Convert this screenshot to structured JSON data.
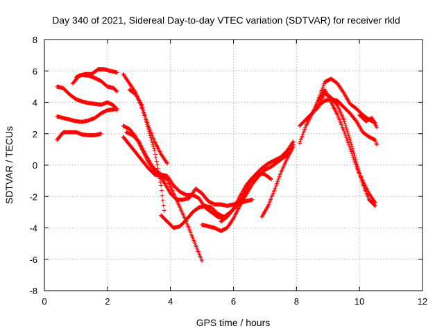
{
  "chart_data": {
    "type": "scatter",
    "title": "Day 340 of 2021, Sidereal Day-to-day VTEC variation (SDTVAR) for receiver rkld",
    "xlabel": "GPS time / hours",
    "ylabel": "SDTVAR / TECUs",
    "xlim": [
      0,
      12
    ],
    "ylim": [
      -8,
      8
    ],
    "xticks": [
      0,
      2,
      4,
      6,
      8,
      10,
      12
    ],
    "yticks": [
      -8,
      -6,
      -4,
      -2,
      0,
      2,
      4,
      6,
      8
    ],
    "grid": true,
    "marker": "plus",
    "color": "#ff0000",
    "series": [
      {
        "x": [
          0.4,
          0.6,
          0.8,
          1.0,
          1.2,
          1.4,
          1.6,
          1.8,
          2.0,
          2.2,
          2.3
        ],
        "y": [
          5.0,
          4.9,
          4.5,
          4.2,
          4.05,
          3.95,
          3.9,
          3.85,
          4.0,
          3.8,
          3.5
        ]
      },
      {
        "x": [
          0.4,
          0.6,
          0.8,
          1.0,
          1.2,
          1.4,
          1.6,
          1.8,
          2.0,
          2.2,
          2.3
        ],
        "y": [
          3.1,
          3.0,
          2.9,
          2.8,
          2.75,
          2.85,
          3.0,
          3.3,
          3.5,
          3.55,
          3.6
        ]
      },
      {
        "x": [
          0.4,
          0.6,
          0.8,
          1.0,
          1.2,
          1.4,
          1.6,
          1.8
        ],
        "y": [
          1.6,
          2.1,
          2.1,
          2.1,
          1.95,
          1.9,
          1.9,
          2.0
        ]
      },
      {
        "x": [
          0.9,
          1.1,
          1.3,
          1.5,
          1.7,
          1.9,
          2.1,
          2.3
        ],
        "y": [
          5.2,
          5.7,
          5.8,
          5.8,
          6.1,
          6.1,
          6.0,
          5.9
        ]
      },
      {
        "x": [
          1.0,
          1.2,
          1.4,
          1.6,
          1.8,
          2.0,
          2.2,
          2.3
        ],
        "y": [
          5.6,
          5.75,
          5.7,
          5.55,
          5.35,
          5.0,
          4.9,
          4.7
        ]
      },
      {
        "x": [
          2.5,
          2.7,
          2.9,
          3.1,
          3.3,
          3.5,
          3.7,
          3.9
        ],
        "y": [
          5.8,
          5.2,
          4.6,
          3.6,
          2.5,
          1.5,
          0.7,
          0.1
        ]
      },
      {
        "x": [
          2.7,
          2.9,
          3.1,
          3.3,
          3.5,
          3.7,
          3.8
        ],
        "y": [
          4.8,
          4.5,
          3.8,
          2.3,
          0.9,
          -1.3,
          -2.9
        ]
      },
      {
        "x": [
          2.5,
          2.7,
          2.9,
          3.1,
          3.3,
          3.5,
          3.7,
          3.9,
          4.1,
          4.3,
          4.5,
          4.7,
          4.9,
          5.0
        ],
        "y": [
          1.8,
          1.3,
          0.8,
          0.3,
          -0.2,
          -0.6,
          -0.7,
          -0.9,
          -1.8,
          -2.7,
          -3.6,
          -4.6,
          -5.6,
          -6.1
        ]
      },
      {
        "x": [
          2.5,
          2.7,
          2.9,
          3.1,
          3.3,
          3.5,
          3.7,
          3.9,
          4.1,
          4.3,
          4.5,
          4.7,
          4.9,
          5.1,
          5.3,
          5.5,
          5.7,
          5.9,
          6.0
        ],
        "y": [
          2.5,
          2.3,
          1.8,
          1.0,
          0.2,
          -0.4,
          -0.6,
          -0.7,
          -1.3,
          -1.7,
          -1.9,
          -1.9,
          -2.1,
          -2.7,
          -3.0,
          -3.3,
          -3.4,
          -3.0,
          -2.8
        ]
      },
      {
        "x": [
          2.6,
          2.8,
          3.0,
          3.2,
          3.4,
          3.6,
          3.8,
          4.0,
          4.2,
          4.4,
          4.6,
          4.8,
          5.0,
          5.2,
          5.4,
          5.6,
          5.8,
          6.0,
          6.2,
          6.4,
          6.6
        ],
        "y": [
          2.1,
          1.9,
          1.5,
          0.7,
          0.0,
          -0.5,
          -1.1,
          -1.8,
          -2.2,
          -2.2,
          -2.1,
          -1.5,
          -1.8,
          -2.3,
          -2.5,
          -2.5,
          -2.6,
          -2.5,
          -2.4,
          -2.3,
          -2.2
        ]
      },
      {
        "x": [
          3.7,
          3.9,
          4.1,
          4.3,
          4.5,
          4.7,
          4.9,
          5.1,
          5.3,
          5.5,
          5.7,
          5.9,
          6.1,
          6.3,
          6.5,
          6.7,
          6.9,
          7.1,
          7.3,
          7.5,
          7.7,
          7.9
        ],
        "y": [
          -3.2,
          -3.6,
          -4.0,
          -3.9,
          -3.5,
          -3.0,
          -2.7,
          -2.6,
          -2.7,
          -3.1,
          -3.3,
          -3.0,
          -2.6,
          -2.0,
          -1.2,
          -0.6,
          -0.2,
          0.1,
          0.3,
          0.5,
          0.9,
          1.5
        ]
      },
      {
        "x": [
          5.0,
          5.2,
          5.4,
          5.6,
          5.8,
          6.0,
          6.2,
          6.4,
          6.6,
          6.8,
          7.0,
          7.2,
          7.4,
          7.6,
          7.8,
          7.9
        ],
        "y": [
          -3.8,
          -3.9,
          -4.0,
          -4.2,
          -4.0,
          -3.4,
          -2.6,
          -1.9,
          -1.2,
          -0.7,
          -0.3,
          -0.1,
          0.2,
          0.5,
          0.8,
          1.3
        ]
      },
      {
        "x": [
          5.6,
          5.8,
          6.0,
          6.2,
          6.4,
          6.6,
          6.8,
          7.0,
          7.2
        ],
        "y": [
          -3.6,
          -3.3,
          -2.8,
          -2.0,
          -1.3,
          -0.8,
          -0.5,
          -0.6,
          -0.9
        ]
      },
      {
        "x": [
          6.9,
          7.1,
          7.3,
          7.5,
          7.7,
          7.9
        ],
        "y": [
          -3.3,
          -2.6,
          -1.6,
          -0.5,
          0.4,
          1.2
        ]
      },
      {
        "x": [
          8.1,
          8.3,
          8.5,
          8.7,
          8.9,
          9.1,
          9.3,
          9.5,
          9.7,
          9.9,
          10.1,
          10.3,
          10.5
        ],
        "y": [
          1.4,
          2.5,
          3.3,
          4.2,
          5.3,
          5.5,
          5.2,
          4.6,
          3.9,
          3.6,
          3.2,
          2.9,
          2.7
        ]
      },
      {
        "x": [
          8.1,
          8.3,
          8.5,
          8.7,
          8.9,
          9.1,
          9.3,
          9.5,
          9.7,
          9.9,
          10.1,
          10.3,
          10.5,
          10.55
        ],
        "y": [
          2.5,
          2.9,
          3.3,
          3.8,
          4.1,
          4.2,
          4.1,
          3.7,
          3.3,
          2.8,
          2.1,
          1.8,
          1.6,
          1.3
        ]
      },
      {
        "x": [
          8.3,
          8.5,
          8.7,
          8.9,
          9.1,
          9.3,
          9.5,
          9.7,
          9.9,
          10.1,
          10.3,
          10.5
        ],
        "y": [
          2.9,
          3.3,
          3.7,
          4.6,
          4.3,
          3.8,
          2.9,
          1.6,
          0.2,
          -1.2,
          -2.2,
          -2.6
        ]
      },
      {
        "x": [
          8.7,
          8.9,
          9.1,
          9.3,
          9.5,
          9.7,
          9.9,
          10.1,
          10.3,
          10.5
        ],
        "y": [
          4.1,
          4.8,
          4.0,
          3.2,
          2.2,
          1.1,
          -0.1,
          -1.0,
          -1.8,
          -2.4
        ]
      },
      {
        "x": [
          10.0,
          10.2,
          10.4,
          10.55
        ],
        "y": [
          3.2,
          2.8,
          3.0,
          2.4
        ]
      }
    ]
  }
}
